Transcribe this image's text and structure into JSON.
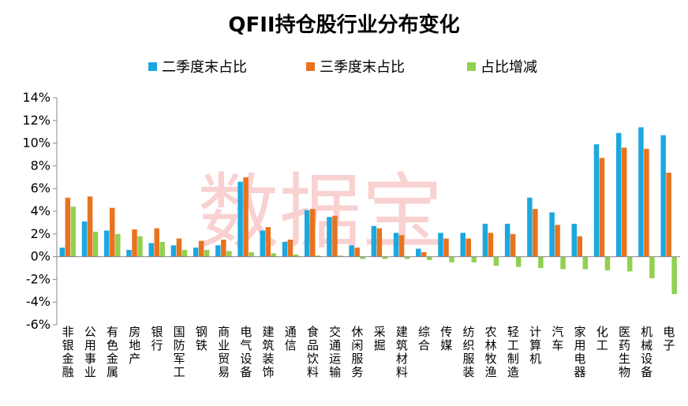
{
  "chart_data": {
    "type": "bar",
    "title": "QFII持仓股行业分布变化",
    "watermark": "数据宝",
    "legend_position": "top",
    "grid": false,
    "ylim": [
      -6,
      14
    ],
    "yticks": [
      "14%",
      "12%",
      "10%",
      "8%",
      "6%",
      "4%",
      "2%",
      "0%",
      "-2%",
      "-4%",
      "-6%"
    ],
    "categories": [
      "非银金融",
      "公用事业",
      "有色金属",
      "房地产",
      "银行",
      "国防军工",
      "钢铁",
      "商业贸易",
      "电气设备",
      "建筑装饰",
      "通信",
      "食品饮料",
      "交通运输",
      "休闲服务",
      "采掘",
      "建筑材料",
      "综合",
      "传媒",
      "纺织服装",
      "农林牧渔",
      "轻工制造",
      "计算机",
      "汽车",
      "家用电器",
      "化工",
      "医药生物",
      "机械设备",
      "电子"
    ],
    "series": [
      {
        "name": "二季度末占比",
        "color": "#1ba8e0",
        "values": [
          0.8,
          3.1,
          2.3,
          0.6,
          1.2,
          1.0,
          0.8,
          1.0,
          6.6,
          2.3,
          1.3,
          4.1,
          3.5,
          1.0,
          2.7,
          2.1,
          0.7,
          2.1,
          2.1,
          2.9,
          2.9,
          5.2,
          3.9,
          2.9,
          9.9,
          10.9,
          11.4,
          10.7
        ]
      },
      {
        "name": "三季度末占比",
        "color": "#e8731e",
        "values": [
          5.2,
          5.3,
          4.3,
          2.4,
          2.5,
          1.6,
          1.4,
          1.5,
          7.0,
          2.6,
          1.5,
          4.2,
          3.6,
          0.8,
          2.5,
          1.9,
          0.4,
          1.6,
          1.6,
          2.1,
          2.0,
          4.2,
          2.8,
          1.8,
          8.7,
          9.6,
          9.5,
          7.4
        ]
      },
      {
        "name": "占比增减",
        "color": "#92d050",
        "values": [
          4.4,
          2.2,
          2.0,
          1.8,
          1.3,
          0.6,
          0.6,
          0.5,
          0.4,
          0.3,
          0.2,
          0.1,
          0.1,
          -0.2,
          -0.2,
          -0.2,
          -0.3,
          -0.5,
          -0.5,
          -0.8,
          -0.9,
          -1.0,
          -1.1,
          -1.1,
          -1.2,
          -1.3,
          -1.9,
          -3.3
        ]
      }
    ]
  }
}
